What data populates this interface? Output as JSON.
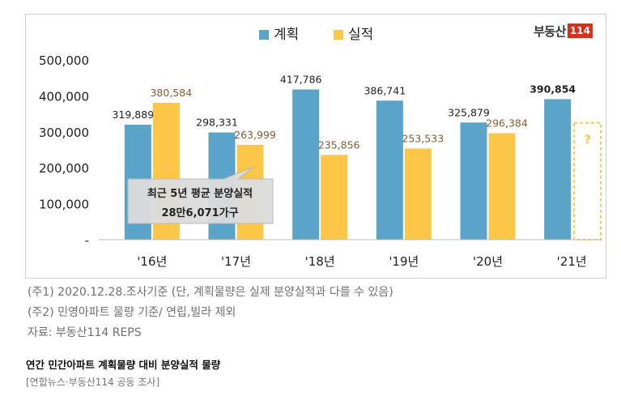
{
  "chart_data": {
    "type": "bar",
    "categories": [
      "'16년",
      "'17년",
      "'18년",
      "'19년",
      "'20년",
      "'21년"
    ],
    "series": [
      {
        "name": "계획",
        "color": "#5aa3c9",
        "values": [
          319889,
          298331,
          417786,
          386741,
          325879,
          390854
        ],
        "labels": [
          "319,889",
          "298,331",
          "417,786",
          "386,741",
          "325,879",
          "390,854"
        ]
      },
      {
        "name": "실적",
        "color": "#fcc749",
        "values": [
          380584,
          263999,
          235856,
          253533,
          296384,
          null
        ],
        "labels": [
          "380,584",
          "263,999",
          "235,856",
          "253,533",
          "296,384",
          ""
        ]
      }
    ],
    "yticks": [
      "-",
      "100,000",
      "200,000",
      "300,000",
      "400,000",
      "500,000"
    ],
    "ylim": [
      0,
      500000
    ],
    "placeholder": {
      "category": "'21년",
      "text": "?",
      "style": "dashed-outline"
    },
    "callout": {
      "line1": "최근 5년 평균 분양실적",
      "line2": "28만6,071가구"
    },
    "legend_position": "top",
    "grid": false,
    "label_colors": {
      "plan": "#222222",
      "actual": "#8a5a2b"
    }
  },
  "brand": {
    "name": "부동산",
    "number": "114"
  },
  "notes": [
    "(주1) 2020.12.28.조사기준 (단, 계획물량은 실제 분양실적과 다를 수 있음)",
    "(주2) 민영아파트 물량 기준/ 연립,빌라 제외",
    "자료: 부동산114 REPS"
  ],
  "caption": {
    "title": "연간 민간아파트 계획물량 대비 분양실적 물량",
    "credit": "[연합뉴스·부동산114 공동 조사]"
  }
}
